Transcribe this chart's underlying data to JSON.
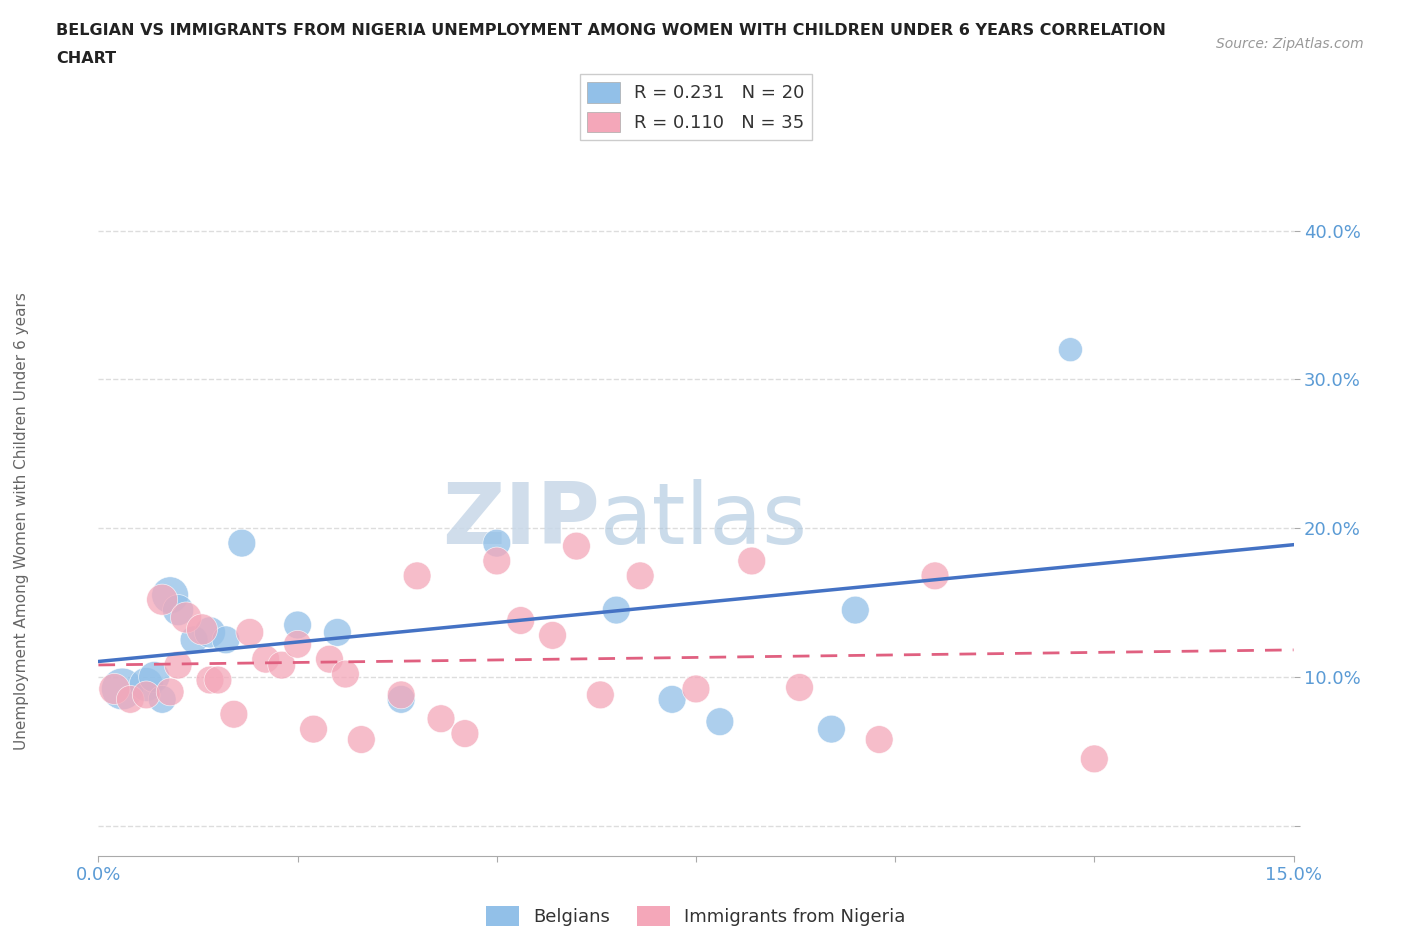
{
  "title_line1": "BELGIAN VS IMMIGRANTS FROM NIGERIA UNEMPLOYMENT AMONG WOMEN WITH CHILDREN UNDER 6 YEARS CORRELATION",
  "title_line2": "CHART",
  "source": "Source: ZipAtlas.com",
  "ylabel": "Unemployment Among Women with Children Under 6 years",
  "xlim": [
    0.0,
    0.15
  ],
  "ylim": [
    -0.02,
    0.43
  ],
  "xticks": [
    0.0,
    0.025,
    0.05,
    0.075,
    0.1,
    0.125,
    0.15
  ],
  "xticklabels": [
    "0.0%",
    "",
    "",
    "",
    "",
    "",
    "15.0%"
  ],
  "yticks": [
    0.0,
    0.1,
    0.2,
    0.3,
    0.4
  ],
  "yticklabels": [
    "",
    "10.0%",
    "20.0%",
    "30.0%",
    "40.0%"
  ],
  "legend_r_blue": "R = 0.231",
  "legend_n_blue": "N = 20",
  "legend_r_pink": "R = 0.110",
  "legend_n_pink": "N = 35",
  "blue_color": "#92C0E8",
  "pink_color": "#F4A7B9",
  "blue_line_color": "#4472C4",
  "pink_line_color": "#E06080",
  "watermark_zip": "ZIP",
  "watermark_atlas": "atlas",
  "blue_x": [
    0.003,
    0.006,
    0.007,
    0.008,
    0.009,
    0.01,
    0.012,
    0.014,
    0.016,
    0.018,
    0.025,
    0.03,
    0.038,
    0.05,
    0.065,
    0.072,
    0.078,
    0.092,
    0.095,
    0.122
  ],
  "blue_y": [
    0.092,
    0.095,
    0.1,
    0.085,
    0.155,
    0.145,
    0.125,
    0.13,
    0.125,
    0.19,
    0.135,
    0.13,
    0.085,
    0.19,
    0.145,
    0.085,
    0.07,
    0.065,
    0.145,
    0.32
  ],
  "blue_sizes": [
    900,
    600,
    500,
    400,
    700,
    500,
    400,
    500,
    400,
    400,
    400,
    400,
    400,
    400,
    400,
    400,
    400,
    400,
    400,
    300
  ],
  "pink_x": [
    0.002,
    0.004,
    0.006,
    0.008,
    0.009,
    0.01,
    0.011,
    0.013,
    0.014,
    0.015,
    0.017,
    0.019,
    0.021,
    0.023,
    0.025,
    0.027,
    0.029,
    0.031,
    0.033,
    0.038,
    0.04,
    0.043,
    0.046,
    0.05,
    0.053,
    0.057,
    0.06,
    0.063,
    0.068,
    0.075,
    0.082,
    0.088,
    0.098,
    0.105,
    0.125
  ],
  "pink_y": [
    0.092,
    0.085,
    0.088,
    0.152,
    0.09,
    0.108,
    0.14,
    0.132,
    0.098,
    0.098,
    0.075,
    0.13,
    0.112,
    0.108,
    0.122,
    0.065,
    0.112,
    0.102,
    0.058,
    0.088,
    0.168,
    0.072,
    0.062,
    0.178,
    0.138,
    0.128,
    0.188,
    0.088,
    0.168,
    0.092,
    0.178,
    0.093,
    0.058,
    0.168,
    0.045
  ],
  "pink_sizes": [
    500,
    400,
    400,
    500,
    400,
    400,
    500,
    500,
    400,
    400,
    400,
    400,
    400,
    400,
    400,
    400,
    400,
    400,
    400,
    400,
    400,
    400,
    400,
    400,
    400,
    400,
    400,
    400,
    400,
    400,
    400,
    400,
    400,
    400,
    400
  ],
  "grid_color": "#DDDDDD",
  "background_color": "#FFFFFF",
  "tick_color": "#5B9BD5",
  "ylabel_color": "#666666",
  "title_color": "#222222"
}
